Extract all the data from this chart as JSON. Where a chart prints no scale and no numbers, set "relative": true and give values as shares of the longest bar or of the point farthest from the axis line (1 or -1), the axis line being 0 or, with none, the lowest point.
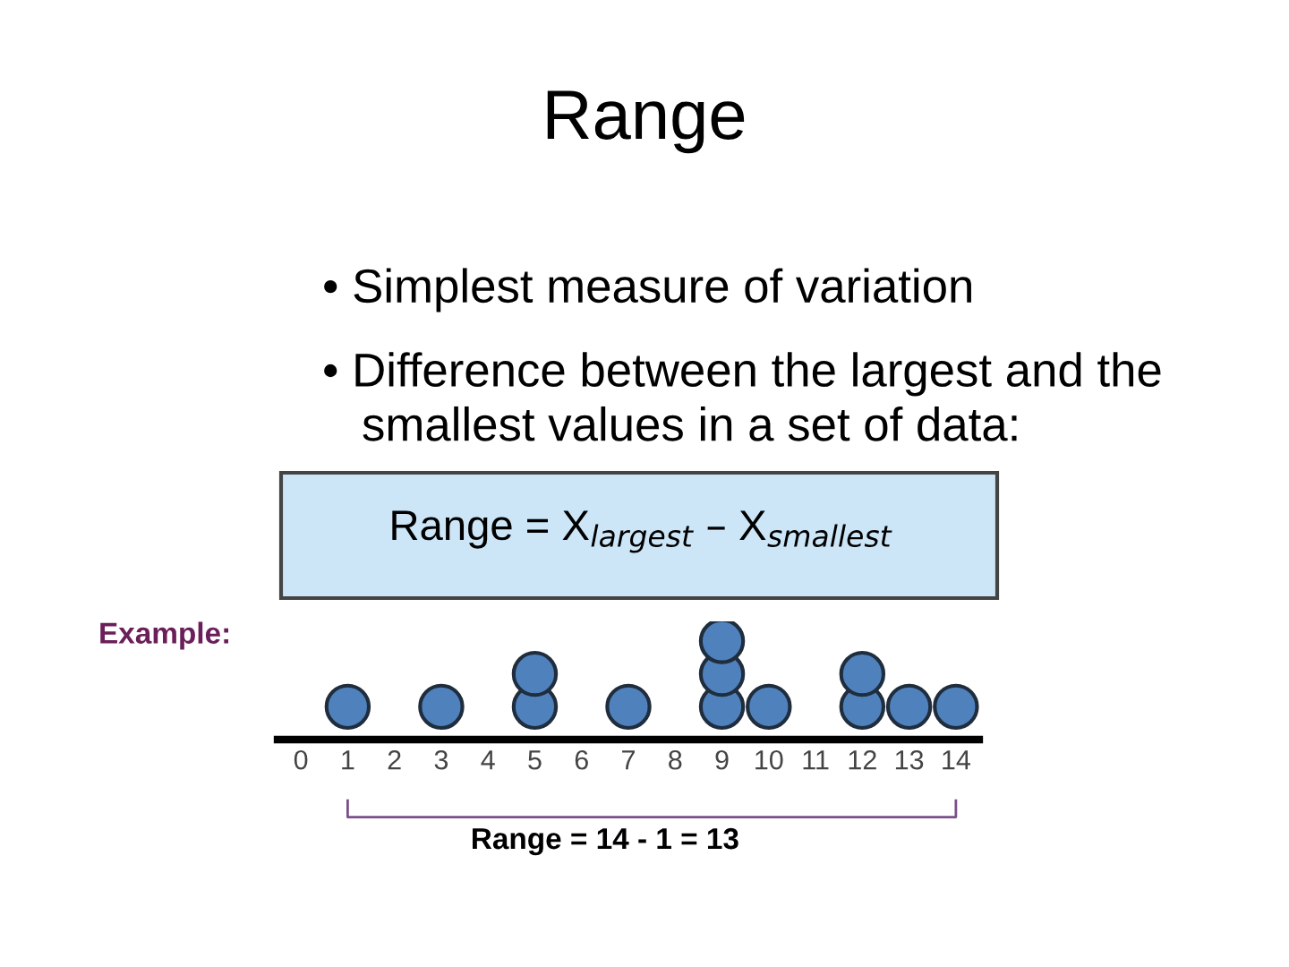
{
  "chart_data": {
    "type": "scatter",
    "title": "Range",
    "relative": true,
    "marker": "circle",
    "grid": false,
    "categories": [
      "0",
      "1",
      "2",
      "3",
      "4",
      "5",
      "6",
      "7",
      "8",
      "9",
      "10",
      "11",
      "12",
      "13",
      "14"
    ],
    "series": [
      {
        "color": "#4f81bd",
        "x": [
          "1",
          "3",
          "5",
          "5",
          "7",
          "9",
          "9",
          "9",
          "10",
          "12",
          "12",
          "13",
          "14"
        ],
        "values": [
          0.333,
          0.333,
          0.333,
          0.667,
          0.333,
          0.333,
          0.667,
          1,
          0.333,
          0.333,
          0.667,
          0.333,
          0.333
        ]
      }
    ],
    "annotations": [
      "• Simplest measure of variation",
      "• Difference between the largest and the\n   smallest values in a set of data:",
      "Range = X$_{largest}$ – X$_{smallest}$",
      "Example:",
      "Range = 14 - 1 = 13"
    ]
  }
}
